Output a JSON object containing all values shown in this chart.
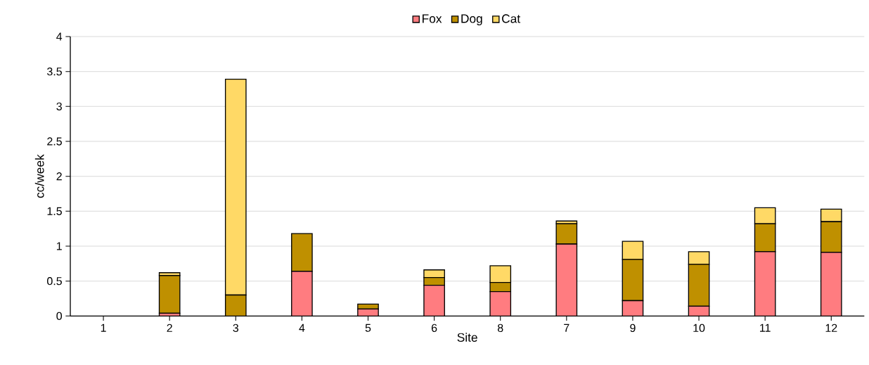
{
  "chart_data": {
    "type": "bar",
    "stacked": true,
    "xlabel": "Site",
    "ylabel": "cc/week",
    "categories": [
      "1",
      "2",
      "3",
      "4",
      "5",
      "6",
      "8",
      "7",
      "9",
      "10",
      "11",
      "12"
    ],
    "series": [
      {
        "name": "Fox",
        "color": "#ff7c80",
        "values": [
          0,
          0.04,
          0,
          0.64,
          0.1,
          0.44,
          0.35,
          1.03,
          0.22,
          0.14,
          0.92,
          0.91
        ]
      },
      {
        "name": "Dog",
        "color": "#bf9000",
        "values": [
          0,
          0.54,
          0.3,
          0.54,
          0.07,
          0.11,
          0.13,
          0.29,
          0.59,
          0.6,
          0.4,
          0.44
        ]
      },
      {
        "name": "Cat",
        "color": "#ffd966",
        "values": [
          0,
          0.04,
          3.09,
          0,
          0,
          0.11,
          0.24,
          0.04,
          0.26,
          0.18,
          0.23,
          0.18
        ]
      }
    ],
    "ylim": [
      0,
      4
    ],
    "yticks": [
      0,
      0.5,
      1,
      1.5,
      2,
      2.5,
      3,
      3.5,
      4
    ],
    "grid": "y",
    "legend": "top"
  }
}
